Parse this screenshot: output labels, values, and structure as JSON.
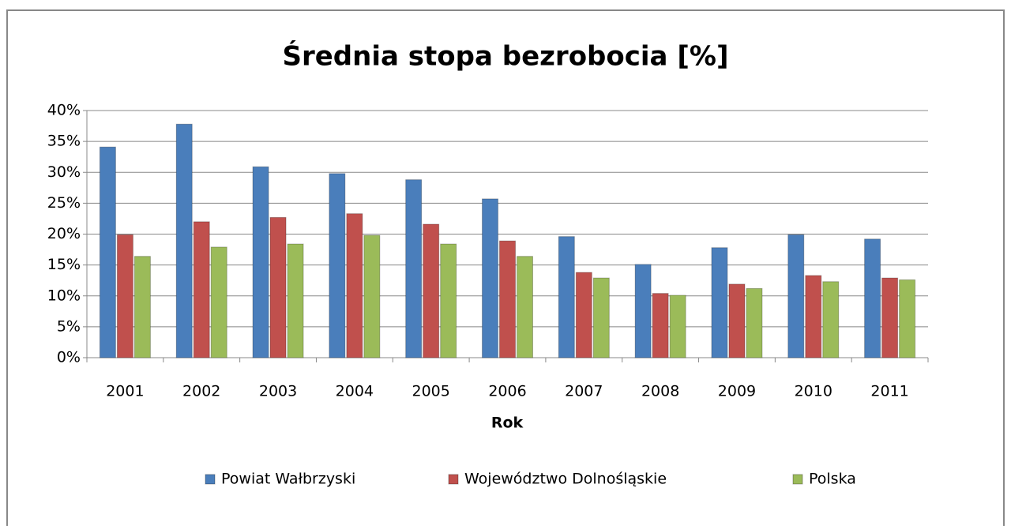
{
  "chart_data": {
    "type": "bar",
    "title": "Średnia stopa bezrobocia [%]",
    "x_label": "Rok",
    "categories": [
      "2001",
      "2002",
      "2003",
      "2004",
      "2005",
      "2006",
      "2007",
      "2008",
      "2009",
      "2010",
      "2011"
    ],
    "series": [
      {
        "name": "Powiat Wałbrzyski",
        "color": "#4a7ebb",
        "values": [
          34.1,
          37.8,
          30.9,
          29.8,
          28.8,
          25.7,
          19.6,
          15.1,
          17.8,
          19.9,
          19.2
        ]
      },
      {
        "name": "Województwo Dolnośląskie",
        "color": "#c0504d",
        "values": [
          19.9,
          22.0,
          22.7,
          23.3,
          21.6,
          18.9,
          13.8,
          10.4,
          11.9,
          13.3,
          12.9
        ]
      },
      {
        "name": "Polska",
        "color": "#9bbb59",
        "values": [
          16.4,
          17.9,
          18.4,
          19.8,
          18.4,
          16.4,
          12.9,
          10.1,
          11.2,
          12.3,
          12.6
        ]
      }
    ],
    "ylim": [
      0,
      40
    ],
    "yticks": [
      {
        "value": 0,
        "label": "0%"
      },
      {
        "value": 5,
        "label": "5%"
      },
      {
        "value": 10,
        "label": "10%"
      },
      {
        "value": 15,
        "label": "15%"
      },
      {
        "value": 20,
        "label": "20%"
      },
      {
        "value": 25,
        "label": "25%"
      },
      {
        "value": 30,
        "label": "30%"
      },
      {
        "value": 35,
        "label": "35%"
      },
      {
        "value": 40,
        "label": "40%"
      }
    ],
    "grid": true,
    "legend": "bottom"
  }
}
